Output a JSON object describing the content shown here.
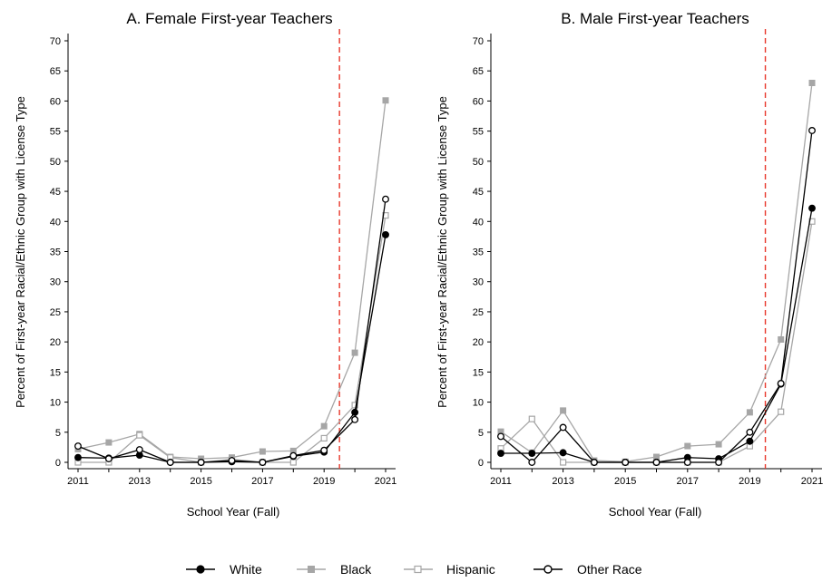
{
  "chart_data": [
    {
      "type": "line",
      "title": "A. Female First-year Teachers",
      "xlabel": "School Year (Fall)",
      "ylabel": "Percent of First-year Racial/Ethnic Group with License Type",
      "x": [
        2011,
        2012,
        2013,
        2014,
        2015,
        2016,
        2017,
        2018,
        2019,
        2020,
        2021
      ],
      "xticks": [
        "2011",
        "2013",
        "2015",
        "2017",
        "2019",
        "2021"
      ],
      "ylim": [
        0,
        70
      ],
      "yticks": [
        "0",
        "5",
        "10",
        "15",
        "20",
        "25",
        "30",
        "35",
        "40",
        "45",
        "50",
        "55",
        "60",
        "65",
        "70"
      ],
      "reference_line_x": 2019.5,
      "series": [
        {
          "name": "White",
          "values": [
            0.8,
            0.7,
            1.2,
            0.0,
            0.0,
            0.1,
            0.0,
            1.0,
            1.7,
            8.3,
            37.8
          ]
        },
        {
          "name": "Black",
          "values": [
            2.2,
            3.3,
            4.7,
            0.9,
            0.6,
            0.8,
            1.8,
            1.9,
            6.0,
            18.2,
            60.1
          ]
        },
        {
          "name": "Hispanic",
          "values": [
            0.0,
            0.0,
            4.5,
            0.8,
            0.0,
            0.5,
            0.0,
            0.0,
            4.0,
            9.5,
            41.0
          ]
        },
        {
          "name": "Other Race",
          "values": [
            2.7,
            0.6,
            2.1,
            0.0,
            0.0,
            0.3,
            0.0,
            1.1,
            2.0,
            7.1,
            43.7
          ]
        }
      ]
    },
    {
      "type": "line",
      "title": "B. Male First-year Teachers",
      "xlabel": "School Year (Fall)",
      "ylabel": "Percent of First-year Racial/Ethnic Group with License Type",
      "x": [
        2011,
        2012,
        2013,
        2014,
        2015,
        2016,
        2017,
        2018,
        2019,
        2020,
        2021
      ],
      "xticks": [
        "2011",
        "2013",
        "2015",
        "2017",
        "2019",
        "2021"
      ],
      "ylim": [
        0,
        70
      ],
      "yticks": [
        "0",
        "5",
        "10",
        "15",
        "20",
        "25",
        "30",
        "35",
        "40",
        "45",
        "50",
        "55",
        "60",
        "65",
        "70"
      ],
      "reference_line_x": 2019.5,
      "series": [
        {
          "name": "White",
          "values": [
            1.5,
            1.5,
            1.6,
            0.0,
            0.0,
            0.0,
            0.8,
            0.6,
            3.5,
            13.0,
            42.2
          ]
        },
        {
          "name": "Black",
          "values": [
            5.1,
            1.6,
            8.6,
            0.3,
            0.1,
            0.9,
            2.7,
            3.0,
            8.3,
            20.4,
            63.0
          ]
        },
        {
          "name": "Hispanic",
          "values": [
            2.3,
            7.2,
            0.0,
            0.0,
            0.0,
            0.0,
            0.0,
            0.0,
            2.7,
            8.4,
            40.0
          ]
        },
        {
          "name": "Other Race",
          "values": [
            4.3,
            0.0,
            5.8,
            0.0,
            0.0,
            0.0,
            0.0,
            0.0,
            5.0,
            13.1,
            55.1
          ]
        }
      ]
    }
  ],
  "legend": {
    "position": "bottom",
    "items": [
      {
        "label": "White",
        "marker": "filled-circle",
        "color": "#000000"
      },
      {
        "label": "Black",
        "marker": "filled-square",
        "color": "#a6a6a6"
      },
      {
        "label": "Hispanic",
        "marker": "hollow-square",
        "color": "#a6a6a6"
      },
      {
        "label": "Other Race",
        "marker": "hollow-circle",
        "color": "#000000"
      }
    ]
  },
  "colors": {
    "reference_line": "#e8382c",
    "axis": "#000000",
    "black_series": "#a6a6a6",
    "white_series": "#000000"
  }
}
